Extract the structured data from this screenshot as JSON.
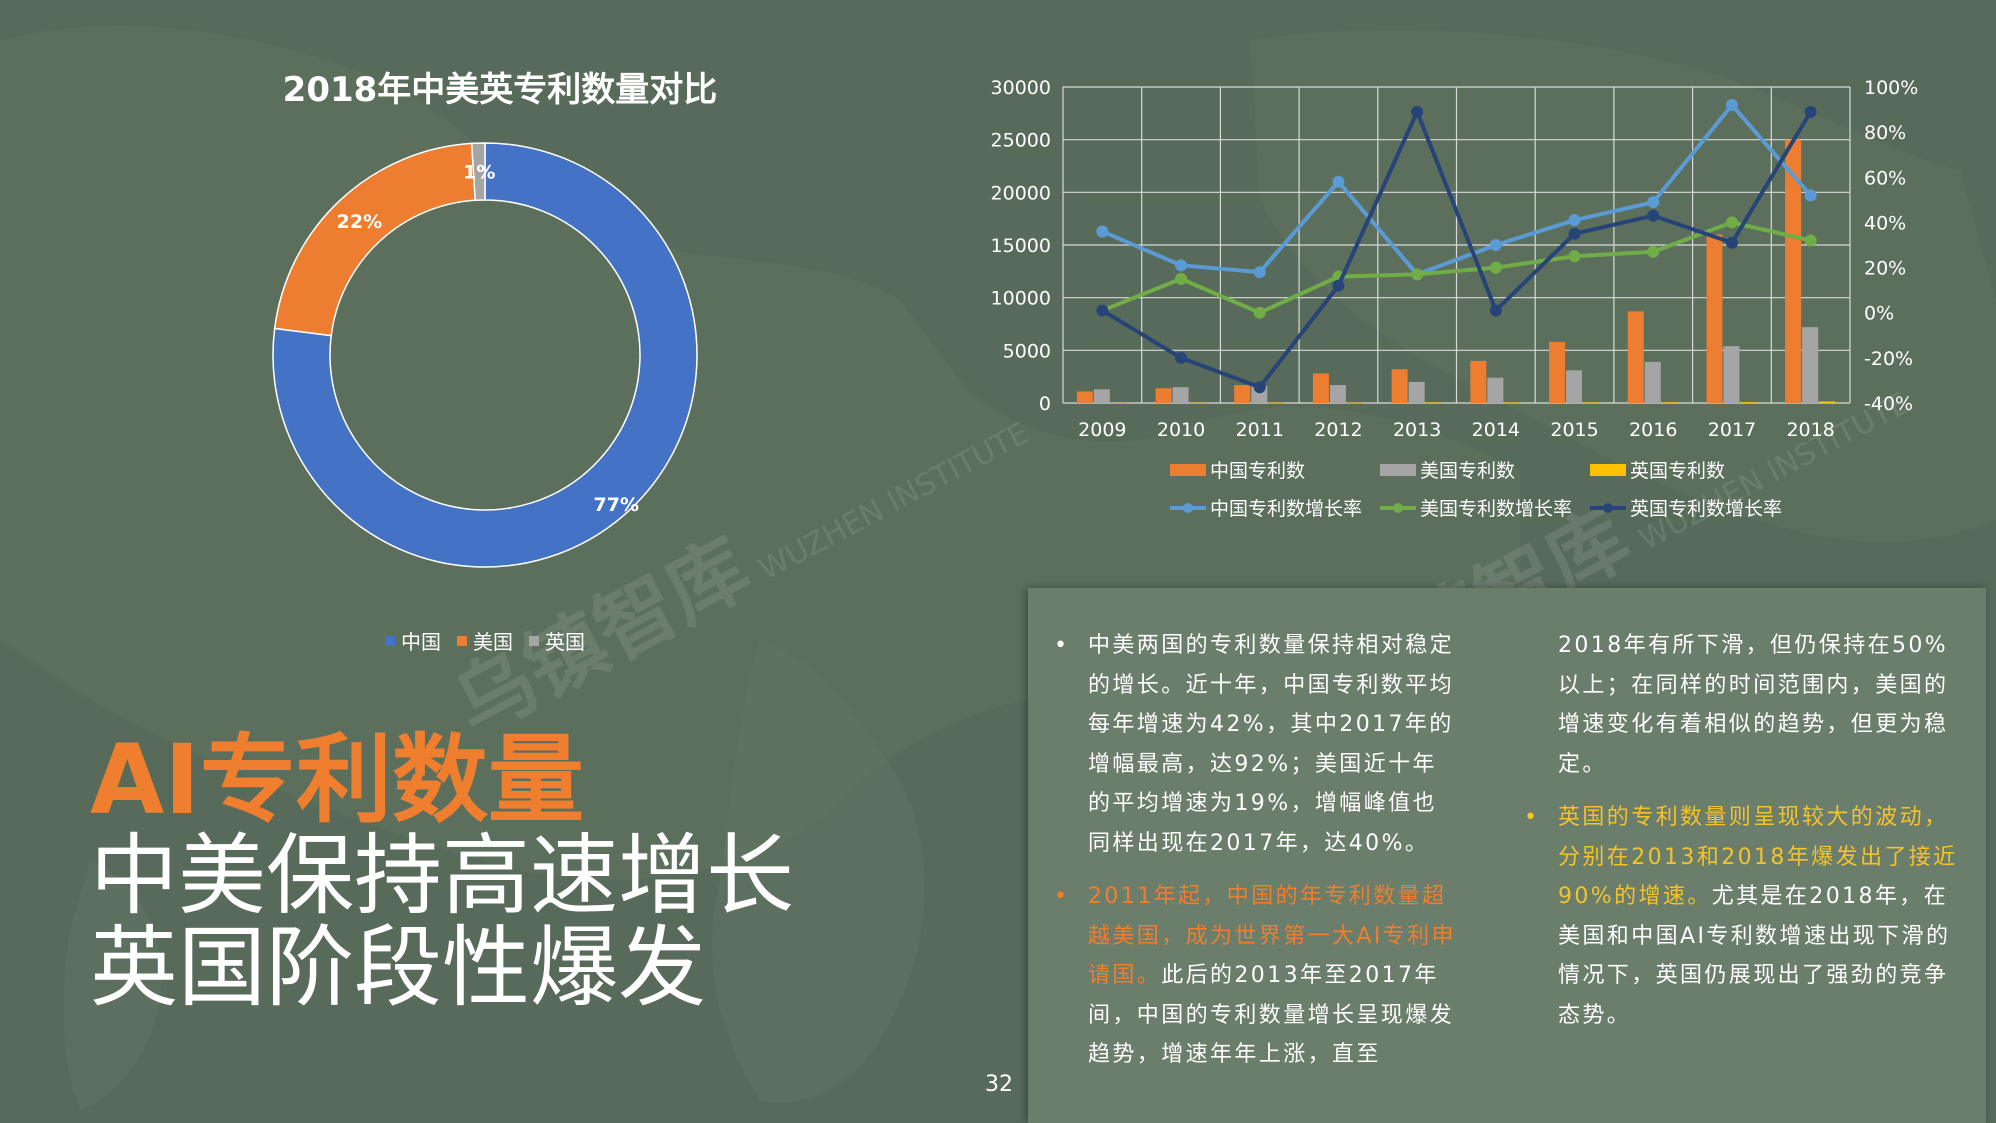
{
  "donut_title": "2018年中美英专利数量对比",
  "donut_legend": [
    {
      "label": "中国",
      "color": "#4472c4"
    },
    {
      "label": "美国",
      "color": "#ed7d31"
    },
    {
      "label": "英国",
      "color": "#a5a5a5"
    }
  ],
  "title": {
    "main": "AI专利数量",
    "line1": "中美保持高速增长",
    "line2": "英国阶段性爆发"
  },
  "page_number": "32",
  "watermark": {
    "text1": "乌镇智库",
    "text2": "WUZHEN INSTITUTE"
  },
  "chart_data": [
    {
      "type": "pie",
      "title": "2018年中美英专利数量对比",
      "labels": [
        "中国",
        "美国",
        "英国"
      ],
      "values": [
        77,
        22,
        1
      ],
      "value_labels": [
        "77%",
        "22%",
        "1%"
      ],
      "colors": [
        "#4472c4",
        "#ed7d31",
        "#a5a5a5"
      ],
      "hole": true,
      "legend": "bottom"
    },
    {
      "type": "bar",
      "categories": [
        "2009",
        "2010",
        "2011",
        "2012",
        "2013",
        "2014",
        "2015",
        "2016",
        "2017",
        "2018"
      ],
      "ylim": [
        0,
        30000
      ],
      "yticks": [
        "0",
        "5000",
        "10000",
        "15000",
        "20000",
        "25000",
        "30000"
      ],
      "y2lim": [
        -40,
        100
      ],
      "y2ticks": [
        "-40%",
        "-20%",
        "0%",
        "20%",
        "40%",
        "60%",
        "80%",
        "100%"
      ],
      "grid": true,
      "legend": "bottom",
      "series": [
        {
          "name": "中国专利数",
          "kind": "bar",
          "axis": "left",
          "color": "#ed7d31",
          "values": [
            1100,
            1400,
            1700,
            2800,
            3200,
            4000,
            5800,
            8700,
            16000,
            25000
          ]
        },
        {
          "name": "美国专利数",
          "kind": "bar",
          "axis": "left",
          "color": "#a5a5a5",
          "values": [
            1300,
            1500,
            1600,
            1700,
            2000,
            2400,
            3100,
            3900,
            5400,
            7200
          ]
        },
        {
          "name": "英国专利数",
          "kind": "bar",
          "axis": "left",
          "color": "#ffc000",
          "values": [
            20,
            25,
            30,
            35,
            60,
            50,
            60,
            70,
            80,
            150
          ]
        },
        {
          "name": "中国专利数增长率",
          "kind": "line",
          "axis": "right",
          "color": "#5b9bd5",
          "values": [
            36,
            21,
            18,
            58,
            17,
            30,
            41,
            49,
            92,
            52
          ]
        },
        {
          "name": "美国专利数增长率",
          "kind": "line",
          "axis": "right",
          "color": "#70ad47",
          "values": [
            1,
            15,
            0,
            16,
            17,
            20,
            25,
            27,
            40,
            32
          ]
        },
        {
          "name": "英国专利数增长率",
          "kind": "line",
          "axis": "right",
          "color": "#264478",
          "values": [
            1,
            -20,
            -33,
            12,
            89,
            1,
            35,
            43,
            31,
            89
          ]
        }
      ]
    }
  ],
  "text_panel": {
    "col1": {
      "p1": "中美两国的专利数量保持相对稳定的增长。近十年，中国专利数平均每年增速为42%，其中2017年的增幅最高，达92%；美国近十年的平均增速为19%，增幅峰值也同样出现在2017年，达40%。",
      "p2_highlight": "2011年起，中国的年专利数量超越美国，成为世界第一大AI专利申请国。",
      "p2_rest": "此后的2013年至2017年间，中国的专利数量增长呈现爆发趋势，增速年年上涨，直至"
    },
    "col2": {
      "p1": "2018年有所下滑，但仍保持在50%以上；在同样的时间范围内，美国的增速变化有着相似的趋势，但更为稳定。",
      "p2_highlight": "英国的专利数量则呈现较大的波动，分别在2013和2018年爆发出了接近90%的增速。",
      "p2_rest": "尤其是在2018年，在美国和中国AI专利数增速出现下滑的情况下，英国仍展现出了强劲的竞争态势。"
    }
  }
}
